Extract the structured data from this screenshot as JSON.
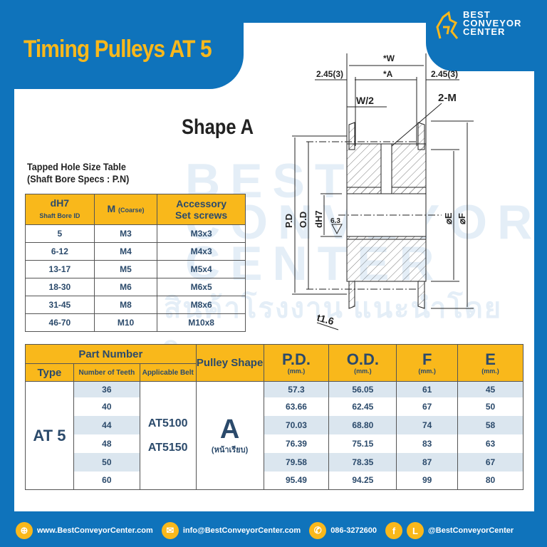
{
  "title": "Timing Pulleys AT 5",
  "brand": {
    "line1": "BEST",
    "line2": "CONVEYOR",
    "line3": "CENTER"
  },
  "watermark": {
    "text": "BEST CONVEYOR CENTER",
    "thai": "สินค้าโรงงาน แนะนำโดยวิศวกร"
  },
  "shape_title": "Shape A",
  "diagram": {
    "w": "*W",
    "a": "*A",
    "left_offset": "2.45(3)",
    "right_offset": "2.45(3)",
    "half_w": "W/2",
    "screws": "2-M",
    "pd": "P.D",
    "od": "O.D",
    "bore": "dH7",
    "roughness": "6.3",
    "e": "⌀E",
    "f": "⌀F",
    "thickness": "t1.6"
  },
  "tapped_table": {
    "title1": "Tapped Hole Size Table",
    "title2": "(Shaft Bore Specs : P.N)",
    "headers": {
      "bore": "dH7",
      "bore_sub": "Shaft Bore ID",
      "m": "M",
      "m_sub": "(Coarse)",
      "acc1": "Accessory",
      "acc2": "Set screws"
    },
    "rows": [
      [
        "5",
        "M3",
        "M3x3"
      ],
      [
        "6-12",
        "M4",
        "M4x3"
      ],
      [
        "13-17",
        "M5",
        "M5x4"
      ],
      [
        "18-30",
        "M6",
        "M6x5"
      ],
      [
        "31-45",
        "M8",
        "M8x6"
      ],
      [
        "46-70",
        "M10",
        "M10x8"
      ]
    ]
  },
  "main_table": {
    "headers": {
      "part_number": "Part Number",
      "type": "Type",
      "teeth": "Number of Teeth",
      "belt": "Applicable Belt",
      "shape": "Pulley Shape",
      "pd": "P.D.",
      "od": "O.D.",
      "f": "F",
      "e": "E",
      "unit": "(mm.)"
    },
    "type": "AT 5",
    "belts": [
      "AT5100",
      "AT5150"
    ],
    "shape": "A",
    "shape_sub": "(หน้าเรียบ)",
    "rows": [
      [
        "36",
        "57.3",
        "56.05",
        "61",
        "45"
      ],
      [
        "40",
        "63.66",
        "62.45",
        "67",
        "50"
      ],
      [
        "44",
        "70.03",
        "68.80",
        "74",
        "58"
      ],
      [
        "48",
        "76.39",
        "75.15",
        "83",
        "63"
      ],
      [
        "50",
        "79.58",
        "78.35",
        "87",
        "67"
      ],
      [
        "60",
        "95.49",
        "94.25",
        "99",
        "80"
      ]
    ]
  },
  "footer": {
    "web": "www.BestConveyorCenter.com",
    "email": "info@BestConveyorCenter.com",
    "phone": "086-3272600",
    "social": "@BestConveyorCenter",
    "fb": "f",
    "line": "L"
  },
  "colors": {
    "blue": "#0f73bb",
    "yellow": "#f9b81b",
    "text": "#2b4a6b",
    "stripe": "#dbe6ef"
  }
}
